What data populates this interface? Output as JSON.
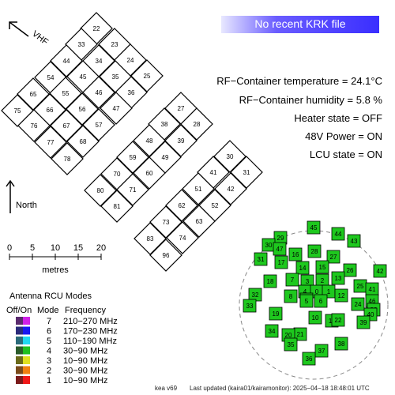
{
  "banner": {
    "text": "No recent KRK file"
  },
  "status": {
    "temperature": "RF−Container temperature = 24.1°C",
    "humidity": "RF−Container humidity = 5.8 %",
    "heater": "Heater state = OFF",
    "power48v": "48V Power = ON",
    "lcu": "LCU state = ON"
  },
  "compass": {
    "vhf_label": "VHF",
    "north_label": "North"
  },
  "scale_bar": {
    "ticks": [
      "0",
      "5",
      "10",
      "15",
      "20"
    ],
    "unit": "metres"
  },
  "legend": {
    "title": "Antenna RCU Modes",
    "col_offon": "Off/On",
    "col_mode": "Mode",
    "col_freq": "Frequency",
    "rows": [
      {
        "mode": "7",
        "freq": "210−270 MHz",
        "off": "#5a2a6e",
        "on": "#d020e8"
      },
      {
        "mode": "6",
        "freq": "170−230 MHz",
        "off": "#2a2a7a",
        "on": "#1818f0"
      },
      {
        "mode": "5",
        "freq": "110−190 MHz",
        "off": "#2a6a7a",
        "on": "#20d8f0"
      },
      {
        "mode": "4",
        "freq": "30−90 MHz",
        "off": "#2a5a2a",
        "on": "#20c020"
      },
      {
        "mode": "3",
        "freq": "10−90 MHz",
        "off": "#6a6a1a",
        "on": "#e0e020"
      },
      {
        "mode": "2",
        "freq": "30−90 MHz",
        "off": "#7a4a1a",
        "on": "#f08010"
      },
      {
        "mode": "1",
        "freq": "10−90 MHz",
        "off": "#7a1a1a",
        "on": "#f01818"
      }
    ]
  },
  "hba_tiles": [
    "22",
    "33",
    "23",
    "44",
    "34",
    "24",
    "54",
    "45",
    "35",
    "25",
    "65",
    "55",
    "46",
    "36",
    "75",
    "66",
    "56",
    "47",
    "76",
    "67",
    "57",
    "77",
    "68",
    "78",
    "27",
    "38",
    "28",
    "48",
    "39",
    "59",
    "49",
    "70",
    "60",
    "80",
    "71",
    "81",
    "30",
    "41",
    "31",
    "51",
    "42",
    "62",
    "52",
    "73",
    "63",
    "83",
    "74",
    "96"
  ],
  "lba_antennas": [
    "45",
    "44",
    "29",
    "30",
    "47",
    "43",
    "31",
    "17",
    "16",
    "28",
    "27",
    "42",
    "14",
    "15",
    "26",
    "18",
    "7",
    "3",
    "2",
    "13",
    "25",
    "41",
    "32",
    "4",
    "0",
    "1",
    "12",
    "46",
    "33",
    "8",
    "9",
    "5",
    "6",
    "24",
    "23",
    "40",
    "19",
    "10",
    "11",
    "22",
    "39",
    "34",
    "21",
    "20",
    "35",
    "37",
    "38",
    "36"
  ],
  "footer": {
    "station": "kea v69",
    "updated": "Last updated (kaira01/kairamonitor): 2025−04−18 18:48:01 UTC"
  },
  "colors": {
    "lba_on": "#1ec81e",
    "tile_border": "#000000",
    "circle": "#888888"
  }
}
